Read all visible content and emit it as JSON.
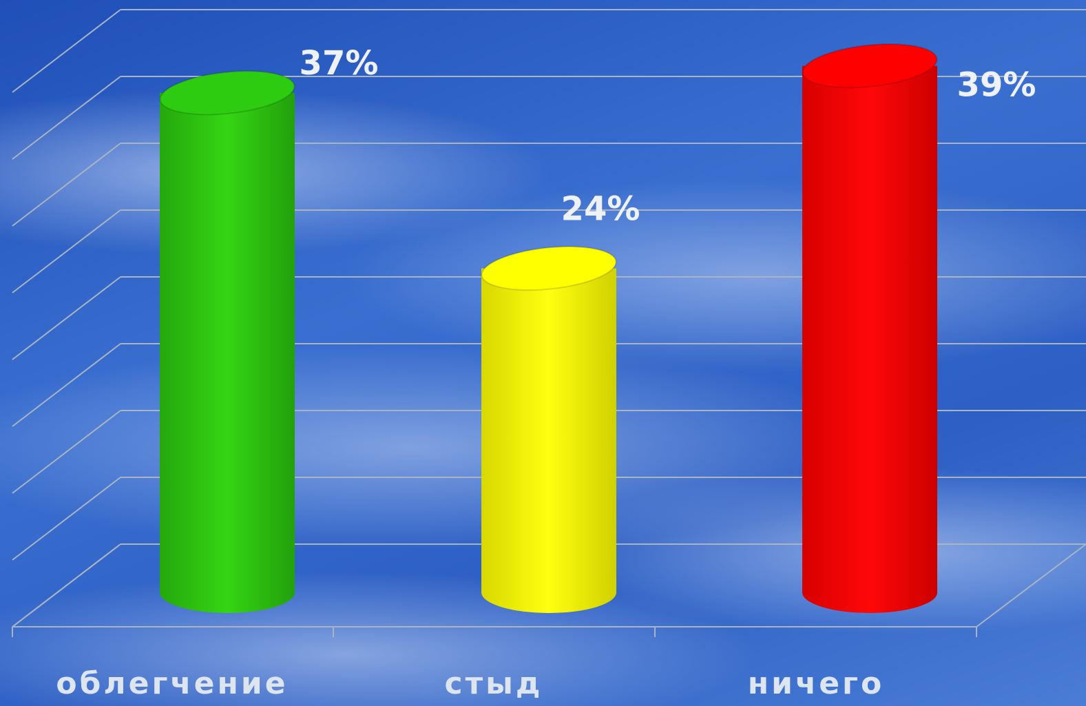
{
  "chart_data": {
    "type": "bar",
    "categories": [
      "облегчение",
      "стыд",
      "ничего"
    ],
    "values": [
      37,
      24,
      39
    ],
    "value_labels": [
      "37%",
      "24%",
      "39%"
    ],
    "colors": [
      "#2ecc10",
      "#ffff00",
      "#ff0000"
    ],
    "ylim": [
      0,
      40
    ],
    "yticks": [
      0,
      5,
      10,
      15,
      20,
      25,
      30,
      35,
      40
    ],
    "grid": true
  }
}
